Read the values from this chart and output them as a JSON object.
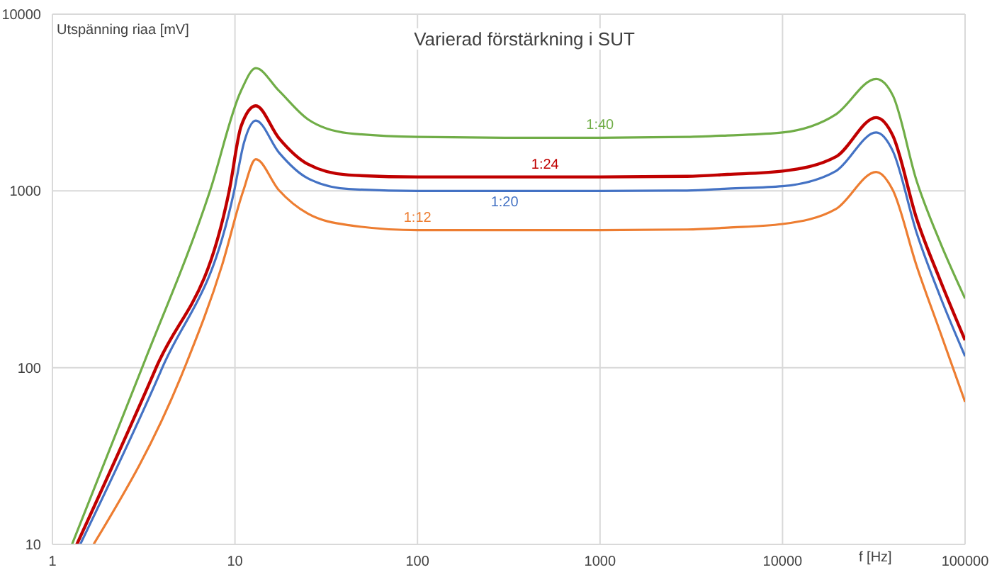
{
  "chart_data": {
    "type": "line",
    "title": "Varierad förstärkning i SUT",
    "xlabel": "f [Hz]",
    "ylabel": "Utspänning riaa [mV]",
    "log": "xy",
    "grid": true,
    "marker": "none",
    "line_style": "solid",
    "xlim": [
      1,
      100000
    ],
    "xticks": [
      1,
      10,
      100,
      1000,
      10000,
      100000
    ],
    "ylim": [
      10,
      10000
    ],
    "yticks": [
      10,
      100,
      1000,
      10000
    ],
    "series": [
      {
        "name": "1:40",
        "color": "#70ad47",
        "x": [
          1.28,
          3.1,
          7.3,
          10.8,
          13,
          17.4,
          25,
          42,
          100,
          300,
          500,
          1000,
          3000,
          5000,
          10000,
          19600,
          32600,
          40200,
          54200,
          72900,
          100000
        ],
        "values": [
          10,
          100,
          1000,
          3690,
          4950,
          3690,
          2550,
          2120,
          2020,
          2000,
          2000,
          2000,
          2020,
          2060,
          2140,
          2710,
          4300,
          3470,
          1145,
          514,
          246
        ]
      },
      {
        "name": "1:24",
        "color": "#c00000",
        "x": [
          1.36,
          3.7,
          9.3,
          10.8,
          13,
          17.4,
          25,
          42,
          100,
          300,
          500,
          1000,
          3000,
          5000,
          10000,
          19600,
          32600,
          40200,
          54200,
          72900,
          100000
        ],
        "values": [
          10,
          100,
          1000,
          2320,
          3030,
          1990,
          1420,
          1230,
          1200,
          1200,
          1200,
          1200,
          1210,
          1240,
          1295,
          1560,
          2600,
          2055,
          700,
          314,
          143
        ]
      },
      {
        "name": "1:20",
        "color": "#4472c4",
        "x": [
          1.42,
          4,
          9.9,
          11.2,
          13,
          17.4,
          25,
          42,
          100,
          300,
          500,
          1000,
          3000,
          5000,
          10000,
          19600,
          32600,
          40200,
          54200,
          72900,
          100000
        ],
        "values": [
          10,
          100,
          1000,
          1870,
          2500,
          1650,
          1180,
          1025,
          1000,
          1000,
          1000,
          1000,
          1005,
          1030,
          1063,
          1295,
          2140,
          1680,
          582,
          254,
          116
        ]
      },
      {
        "name": "1:12",
        "color": "#ed7d31",
        "x": [
          1.68,
          5.3,
          8.5,
          11.1,
          13,
          17.4,
          25,
          42,
          100,
          300,
          500,
          1000,
          3000,
          5000,
          10000,
          19600,
          32600,
          40200,
          54200,
          72900,
          100000
        ],
        "values": [
          10,
          100,
          380,
          1000,
          1510,
          1010,
          745,
          640,
          600,
          600,
          600,
          600,
          605,
          620,
          650,
          790,
          1280,
          1010,
          378,
          160,
          64
        ]
      }
    ]
  }
}
